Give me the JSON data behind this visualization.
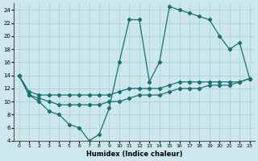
{
  "xlabel": "Humidex (Indice chaleur)",
  "bg_color": "#cce8ec",
  "grid_color": "#aacdd4",
  "line_color": "#1a7070",
  "xlim": [
    -0.5,
    23.5
  ],
  "ylim": [
    4,
    25
  ],
  "xticks": [
    0,
    1,
    2,
    3,
    4,
    5,
    6,
    7,
    8,
    9,
    10,
    11,
    12,
    13,
    14,
    15,
    16,
    17,
    18,
    19,
    20,
    21,
    22,
    23
  ],
  "yticks": [
    4,
    6,
    8,
    10,
    12,
    14,
    16,
    18,
    20,
    22,
    24
  ],
  "curve1_x": [
    0,
    1,
    2,
    3,
    4,
    5,
    6,
    7,
    8,
    9,
    10,
    11,
    12,
    13,
    14,
    15,
    16,
    17,
    18,
    19,
    20,
    21,
    22,
    23
  ],
  "curve1_y": [
    14,
    11,
    10,
    8.5,
    8,
    6.5,
    6,
    4,
    5,
    9,
    16,
    22.5,
    22.5,
    13,
    16,
    24.5,
    24,
    23.5,
    23,
    22.5,
    20,
    18,
    19,
    13.5
  ],
  "curve2_x": [
    0,
    1,
    2,
    3,
    4,
    5,
    6,
    7,
    8,
    9,
    10,
    11,
    12,
    13,
    14,
    15,
    16,
    17,
    18,
    19,
    20,
    21,
    22,
    23
  ],
  "curve2_y": [
    14,
    11.5,
    11,
    11,
    11,
    11,
    11,
    11,
    11,
    11,
    11.5,
    12,
    12,
    12,
    12,
    12.5,
    13,
    13,
    13,
    13,
    13,
    13,
    13,
    13.5
  ],
  "curve3_x": [
    0,
    1,
    2,
    3,
    4,
    5,
    6,
    7,
    8,
    9,
    10,
    11,
    12,
    13,
    14,
    15,
    16,
    17,
    18,
    19,
    20,
    21,
    22,
    23
  ],
  "curve3_y": [
    14,
    11,
    10.5,
    10,
    9.5,
    9.5,
    9.5,
    9.5,
    9.5,
    10,
    10,
    10.5,
    11,
    11,
    11,
    11.5,
    12,
    12,
    12,
    12.5,
    12.5,
    12.5,
    13,
    13.5
  ]
}
